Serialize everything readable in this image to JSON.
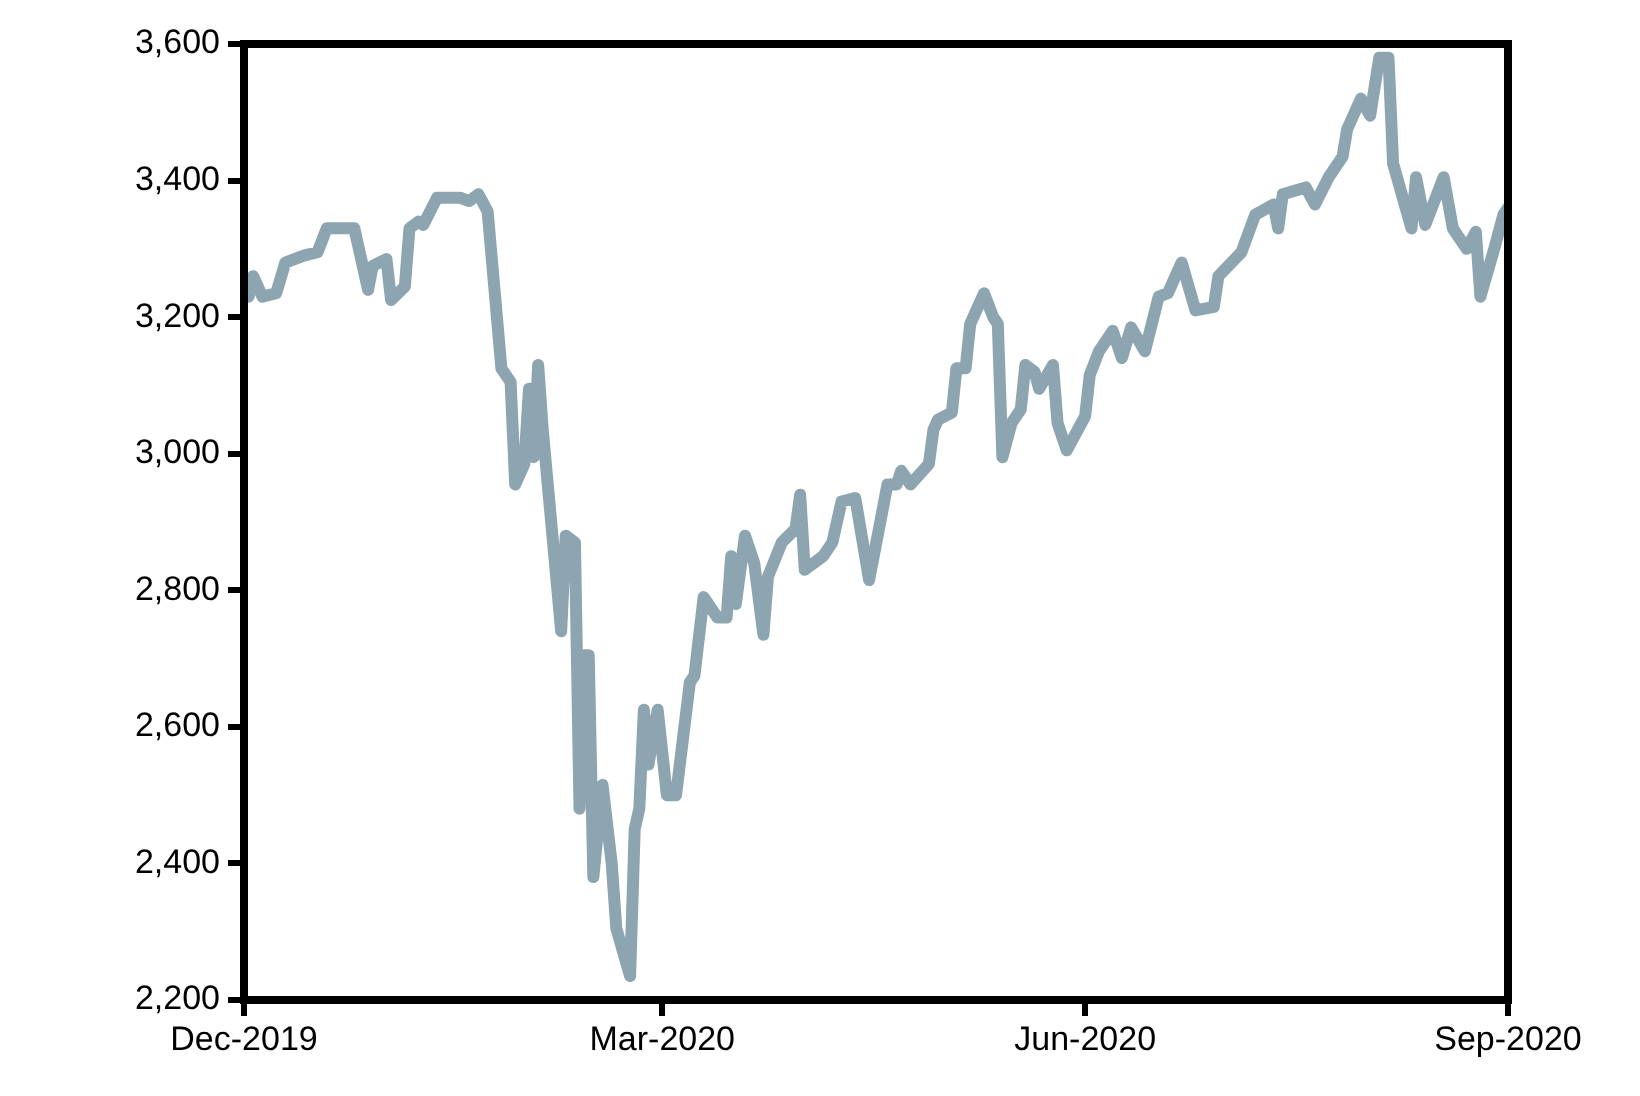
{
  "chart_data": {
    "type": "line",
    "legend": false,
    "marker": "none",
    "line_style": "solid",
    "xlim": [
      "2019-12-01",
      "2020-09-01"
    ],
    "xticks": [
      {
        "value": "2019-12-01",
        "label": "Dec-2019"
      },
      {
        "value": "2020-03-01",
        "label": "Mar-2020"
      },
      {
        "value": "2020-06-01",
        "label": "Jun-2020"
      },
      {
        "value": "2020-09-01",
        "label": "Sep-2020"
      }
    ],
    "ylim": [
      2200,
      3600
    ],
    "yticks": [
      {
        "value": 2200,
        "label": "2,200"
      },
      {
        "value": 2400,
        "label": "2,400"
      },
      {
        "value": 2600,
        "label": "2,600"
      },
      {
        "value": 2800,
        "label": "2,800"
      },
      {
        "value": 3000,
        "label": "3,000"
      },
      {
        "value": 3200,
        "label": "3,200"
      },
      {
        "value": 3400,
        "label": "3,400"
      },
      {
        "value": 3600,
        "label": "3,600"
      }
    ],
    "x": [
      "2019-12-02",
      "2019-12-03",
      "2019-12-05",
      "2019-12-08",
      "2019-12-10",
      "2019-12-14",
      "2019-12-17",
      "2019-12-19",
      "2019-12-25",
      "2019-12-28",
      "2019-12-29",
      "2020-01-01",
      "2020-01-02",
      "2020-01-05",
      "2020-01-06",
      "2020-01-08",
      "2020-01-09",
      "2020-01-12",
      "2020-01-17",
      "2020-01-19",
      "2020-01-21",
      "2020-01-23",
      "2020-01-26",
      "2020-01-28",
      "2020-01-29",
      "2020-01-31",
      "2020-02-01",
      "2020-02-02",
      "2020-02-03",
      "2020-02-04",
      "2020-02-08",
      "2020-02-09",
      "2020-02-11",
      "2020-02-12",
      "2020-02-13",
      "2020-02-14",
      "2020-02-15",
      "2020-02-17",
      "2020-02-19",
      "2020-02-20",
      "2020-02-23",
      "2020-02-24",
      "2020-02-25",
      "2020-02-26",
      "2020-02-27",
      "2020-02-29",
      "2020-03-02",
      "2020-03-04",
      "2020-03-07",
      "2020-03-08",
      "2020-03-10",
      "2020-03-13",
      "2020-03-15",
      "2020-03-16",
      "2020-03-17",
      "2020-03-19",
      "2020-03-21",
      "2020-03-23",
      "2020-03-24",
      "2020-03-27",
      "2020-03-30",
      "2020-03-31",
      "2020-04-01",
      "2020-04-05",
      "2020-04-07",
      "2020-04-09",
      "2020-04-12",
      "2020-04-15",
      "2020-04-19",
      "2020-04-21",
      "2020-04-22",
      "2020-04-24",
      "2020-04-28",
      "2020-04-29",
      "2020-04-30",
      "2020-05-03",
      "2020-05-04",
      "2020-05-06",
      "2020-05-07",
      "2020-05-10",
      "2020-05-12",
      "2020-05-13",
      "2020-05-14",
      "2020-05-16",
      "2020-05-18",
      "2020-05-19",
      "2020-05-21",
      "2020-05-22",
      "2020-05-25",
      "2020-05-26",
      "2020-05-28",
      "2020-06-01",
      "2020-06-02",
      "2020-06-04",
      "2020-06-07",
      "2020-06-09",
      "2020-06-11",
      "2020-06-14",
      "2020-06-17",
      "2020-06-19",
      "2020-06-22",
      "2020-06-25",
      "2020-06-29",
      "2020-06-30",
      "2020-07-05",
      "2020-07-08",
      "2020-07-12",
      "2020-07-13",
      "2020-07-14",
      "2020-07-19",
      "2020-07-21",
      "2020-07-24",
      "2020-07-27",
      "2020-07-28",
      "2020-07-31",
      "2020-08-02",
      "2020-08-04",
      "2020-08-06",
      "2020-08-07",
      "2020-08-11",
      "2020-08-12",
      "2020-08-14",
      "2020-08-18",
      "2020-08-20",
      "2020-08-23",
      "2020-08-25",
      "2020-08-26",
      "2020-08-29",
      "2020-08-31",
      "2020-09-01"
    ],
    "series": [
      {
        "color": "#8ca5b0",
        "values": [
          3230,
          3260,
          3230,
          3235,
          3280,
          3290,
          3295,
          3330,
          3330,
          3240,
          3275,
          3285,
          3225,
          3245,
          3330,
          3340,
          3335,
          3375,
          3375,
          3370,
          3380,
          3355,
          3125,
          3105,
          2955,
          2985,
          3095,
          2995,
          3130,
          3035,
          2740,
          2880,
          2870,
          2480,
          2705,
          2705,
          2380,
          2515,
          2400,
          2305,
          2235,
          2450,
          2480,
          2625,
          2545,
          2625,
          2500,
          2500,
          2665,
          2675,
          2790,
          2760,
          2760,
          2850,
          2780,
          2880,
          2840,
          2735,
          2820,
          2870,
          2890,
          2940,
          2830,
          2850,
          2870,
          2930,
          2935,
          2815,
          2955,
          2955,
          2975,
          2955,
          2985,
          3035,
          3050,
          3060,
          3125,
          3125,
          3190,
          3235,
          3200,
          3190,
          2995,
          3045,
          3065,
          3130,
          3120,
          3095,
          3130,
          3045,
          3005,
          3055,
          3115,
          3150,
          3180,
          3140,
          3185,
          3150,
          3230,
          3235,
          3280,
          3210,
          3215,
          3260,
          3295,
          3350,
          3365,
          3330,
          3380,
          3390,
          3365,
          3405,
          3435,
          3475,
          3520,
          3495,
          3580,
          3580,
          3425,
          3330,
          3405,
          3335,
          3405,
          3330,
          3300,
          3325,
          3230,
          3300,
          3350,
          3360
        ]
      }
    ]
  }
}
